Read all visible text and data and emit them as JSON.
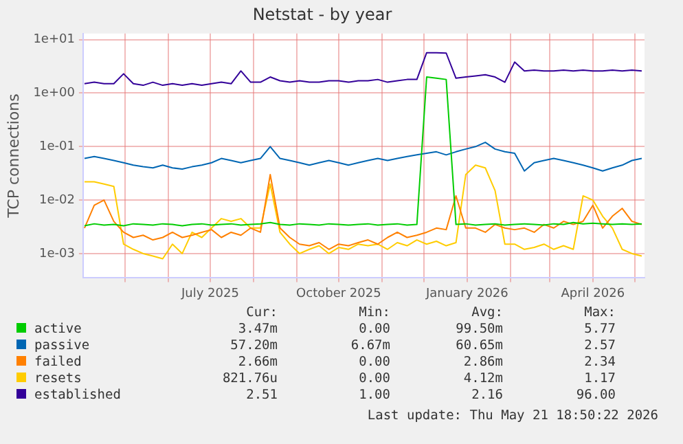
{
  "chart_data": {
    "type": "line",
    "title": "Netstat - by year",
    "ylabel": "TCP connections",
    "log": "y",
    "grid": true,
    "legend": "bottom",
    "marker": "none",
    "line_style": "solid",
    "xlim": [
      "2025-04-01",
      "2026-05-08"
    ],
    "xticks": [
      {
        "value": "2025-05-01",
        "label": null
      },
      {
        "value": "2025-06-01",
        "label": null
      },
      {
        "value": "2025-07-01",
        "label": "July 2025"
      },
      {
        "value": "2025-08-01",
        "label": null
      },
      {
        "value": "2025-09-01",
        "label": null
      },
      {
        "value": "2025-10-01",
        "label": "October 2025"
      },
      {
        "value": "2025-11-01",
        "label": null
      },
      {
        "value": "2025-12-01",
        "label": null
      },
      {
        "value": "2026-01-01",
        "label": "January 2026"
      },
      {
        "value": "2026-02-01",
        "label": null
      },
      {
        "value": "2026-03-01",
        "label": null
      },
      {
        "value": "2026-04-01",
        "label": "April 2026"
      },
      {
        "value": "2026-05-01",
        "label": null
      }
    ],
    "ylim": [
      0.00035,
      13
    ],
    "yticks": [
      {
        "value": 0.001,
        "label": "1e-03"
      },
      {
        "value": 0.01,
        "label": "1e-02"
      },
      {
        "value": 0.1,
        "label": "1e-01"
      },
      {
        "value": 1,
        "label": "1e+00"
      },
      {
        "value": 10,
        "label": "1e+01"
      }
    ],
    "x": [
      "2025-04-02",
      "2025-04-09",
      "2025-04-16",
      "2025-04-23",
      "2025-04-30",
      "2025-05-07",
      "2025-05-14",
      "2025-05-21",
      "2025-05-28",
      "2025-06-04",
      "2025-06-11",
      "2025-06-18",
      "2025-06-25",
      "2025-07-02",
      "2025-07-09",
      "2025-07-16",
      "2025-07-23",
      "2025-07-30",
      "2025-08-06",
      "2025-08-13",
      "2025-08-20",
      "2025-08-27",
      "2025-09-03",
      "2025-09-10",
      "2025-09-17",
      "2025-09-24",
      "2025-10-01",
      "2025-10-08",
      "2025-10-15",
      "2025-10-22",
      "2025-10-29",
      "2025-11-05",
      "2025-11-12",
      "2025-11-19",
      "2025-11-26",
      "2025-12-03",
      "2025-12-10",
      "2025-12-17",
      "2025-12-24",
      "2025-12-31",
      "2026-01-07",
      "2026-01-14",
      "2026-01-21",
      "2026-01-28",
      "2026-02-04",
      "2026-02-11",
      "2026-02-18",
      "2026-02-25",
      "2026-03-04",
      "2026-03-11",
      "2026-03-18",
      "2026-03-25",
      "2026-04-01",
      "2026-04-08",
      "2026-04-15",
      "2026-04-22",
      "2026-04-29",
      "2026-05-06"
    ],
    "series": [
      {
        "name": "active",
        "color": "#00cc00",
        "values": [
          0.0033,
          0.0036,
          0.0034,
          0.0035,
          0.0033,
          0.0036,
          0.0035,
          0.0034,
          0.0036,
          0.0035,
          0.0033,
          0.0035,
          0.0036,
          0.0034,
          0.0035,
          0.0036,
          0.0034,
          0.0035,
          0.0036,
          0.0038,
          0.0035,
          0.0034,
          0.0036,
          0.0035,
          0.0034,
          0.0036,
          0.0035,
          0.0034,
          0.0035,
          0.0036,
          0.0034,
          0.0035,
          0.0036,
          0.0034,
          0.0035,
          2.0,
          1.9,
          1.8,
          0.0035,
          0.0036,
          0.0034,
          0.0035,
          0.0036,
          0.0034,
          0.0035,
          0.0036,
          0.0035,
          0.0034,
          0.0036,
          0.0035,
          0.0038,
          0.0036,
          0.0037,
          0.0036,
          0.0035,
          0.0036,
          0.0035,
          0.0036
        ]
      },
      {
        "name": "passive",
        "color": "#0066b3",
        "values": [
          0.06,
          0.065,
          0.06,
          0.055,
          0.05,
          0.045,
          0.042,
          0.04,
          0.045,
          0.04,
          0.038,
          0.042,
          0.045,
          0.05,
          0.06,
          0.055,
          0.05,
          0.055,
          0.06,
          0.1,
          0.06,
          0.055,
          0.05,
          0.045,
          0.05,
          0.055,
          0.05,
          0.045,
          0.05,
          0.055,
          0.06,
          0.055,
          0.06,
          0.065,
          0.07,
          0.075,
          0.08,
          0.07,
          0.08,
          0.09,
          0.1,
          0.12,
          0.09,
          0.08,
          0.075,
          0.035,
          0.05,
          0.055,
          0.06,
          0.055,
          0.05,
          0.045,
          0.04,
          0.035,
          0.04,
          0.045,
          0.055,
          0.06
        ]
      },
      {
        "name": "failed",
        "color": "#ff8000",
        "values": [
          0.003,
          0.008,
          0.01,
          0.004,
          0.0025,
          0.002,
          0.0022,
          0.0018,
          0.002,
          0.0025,
          0.002,
          0.0022,
          0.0025,
          0.0028,
          0.002,
          0.0025,
          0.0022,
          0.003,
          0.0025,
          0.03,
          0.003,
          0.002,
          0.0015,
          0.0014,
          0.0016,
          0.0012,
          0.0015,
          0.0014,
          0.0016,
          0.0018,
          0.0015,
          0.002,
          0.0025,
          0.002,
          0.0022,
          0.0025,
          0.003,
          0.0028,
          0.012,
          0.003,
          0.003,
          0.0025,
          0.0035,
          0.003,
          0.0028,
          0.003,
          0.0025,
          0.0035,
          0.003,
          0.004,
          0.0035,
          0.004,
          0.008,
          0.003,
          0.005,
          0.007,
          0.004,
          0.0035
        ]
      },
      {
        "name": "resets",
        "color": "#ffcc00",
        "values": [
          0.022,
          0.022,
          0.02,
          0.018,
          0.0015,
          0.0012,
          0.001,
          0.0009,
          0.0008,
          0.0015,
          0.001,
          0.0025,
          0.002,
          0.003,
          0.0045,
          0.004,
          0.0045,
          0.003,
          0.003,
          0.02,
          0.0025,
          0.0015,
          0.001,
          0.0012,
          0.0014,
          0.001,
          0.0013,
          0.0012,
          0.0015,
          0.0014,
          0.0015,
          0.0012,
          0.0016,
          0.0014,
          0.0018,
          0.0015,
          0.0017,
          0.0014,
          0.0016,
          0.03,
          0.045,
          0.04,
          0.015,
          0.0015,
          0.0015,
          0.0012,
          0.0013,
          0.0015,
          0.0012,
          0.0014,
          0.0012,
          0.012,
          0.01,
          0.005,
          0.003,
          0.0012,
          0.001,
          0.0009
        ]
      },
      {
        "name": "established",
        "color": "#330099",
        "values": [
          1.5,
          1.6,
          1.5,
          1.5,
          2.3,
          1.5,
          1.4,
          1.6,
          1.4,
          1.5,
          1.4,
          1.5,
          1.4,
          1.5,
          1.6,
          1.5,
          2.6,
          1.6,
          1.6,
          2.0,
          1.7,
          1.6,
          1.7,
          1.6,
          1.6,
          1.7,
          1.7,
          1.6,
          1.7,
          1.7,
          1.8,
          1.6,
          1.7,
          1.8,
          1.8,
          5.7,
          5.7,
          5.6,
          1.9,
          2.0,
          2.1,
          2.2,
          2.0,
          1.6,
          3.8,
          2.6,
          2.7,
          2.6,
          2.6,
          2.7,
          2.6,
          2.7,
          2.6,
          2.6,
          2.7,
          2.6,
          2.7,
          2.6
        ]
      }
    ],
    "annotations": [
      "Cur:",
      "Min:",
      "Avg:",
      "Max:",
      "3.47m",
      "0.00",
      "99.50m",
      "5.77",
      "57.20m",
      "6.67m",
      "60.65m",
      "2.57",
      "2.66m",
      "0.00",
      "2.86m",
      "2.34",
      "821.76u",
      "0.00",
      "4.12m",
      "1.17",
      "2.51",
      "1.00",
      "2.16",
      "96.00",
      "Last update: Thu May 21 18:50:22 2026"
    ]
  }
}
